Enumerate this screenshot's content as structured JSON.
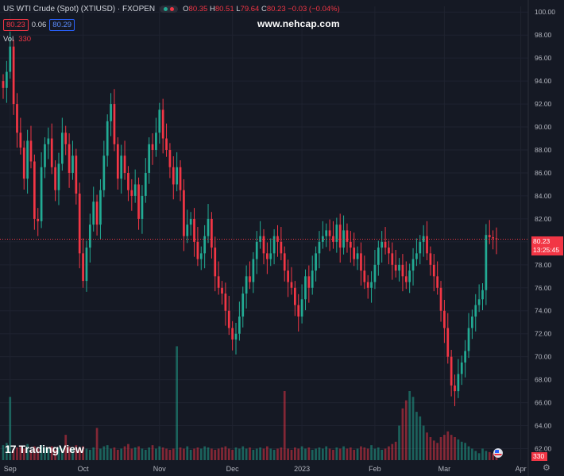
{
  "header": {
    "title": "US WTI Crude (Spot) (XTIUSD) · FXOPEN",
    "ohlc": [
      {
        "k": "O",
        "v": "80.35"
      },
      {
        "k": "H",
        "v": "80.51"
      },
      {
        "k": "L",
        "v": "79.64"
      },
      {
        "k": "C",
        "v": "80.23 −0.03 (−0.04%)"
      }
    ],
    "bid": "80.23",
    "spread": "0.06",
    "ask": "80.29",
    "vol_label": "Vol",
    "vol_value": "330"
  },
  "watermark": "www.nehcap.com",
  "brand": "TradingView",
  "brand_logo": "17",
  "last_price_label": "80.23",
  "countdown": "13:25:45",
  "last_volume_label": "330",
  "colors": {
    "up": "#22ab94",
    "down": "#f23645",
    "background": "#151924",
    "grid": "#1f2330",
    "axis_text": "#b2b5be"
  },
  "chart_data": {
    "type": "candlestick",
    "symbol": "XTIUSD",
    "yticks": [
      62,
      64,
      66,
      68,
      70,
      72,
      74,
      76,
      78,
      80,
      82,
      84,
      86,
      88,
      90,
      92,
      94,
      96,
      98,
      100
    ],
    "ylim": [
      61,
      100.5
    ],
    "xticks": [
      {
        "label": "Sep",
        "i": 2
      },
      {
        "label": "Oct",
        "i": 23
      },
      {
        "label": "Nov",
        "i": 45
      },
      {
        "label": "Dec",
        "i": 66
      },
      {
        "label": "2023",
        "i": 86
      },
      {
        "label": "Feb",
        "i": 107
      },
      {
        "label": "Mar",
        "i": 127
      },
      {
        "label": "Apr",
        "i": 149
      }
    ],
    "last_price": 80.23,
    "close": [
      93.4,
      94.8,
      97.0,
      92.0,
      89.5,
      88.2,
      85.5,
      88.8,
      87.0,
      82.0,
      81.8,
      86.5,
      88.5,
      89.0,
      86.5,
      84.5,
      86.8,
      89.5,
      88.5,
      86.0,
      87.5,
      84.2,
      79.0,
      76.6,
      79.5,
      81.5,
      83.5,
      81.5,
      84.5,
      87.5,
      90.5,
      92.0,
      88.5,
      85.5,
      87.5,
      86.0,
      84.5,
      84.0,
      85.0,
      82.0,
      84.0,
      86.0,
      88.5,
      88.0,
      89.5,
      91.5,
      89.0,
      88.0,
      86.5,
      85.0,
      86.5,
      84.5,
      80.5,
      81.5,
      82.0,
      80.0,
      78.5,
      79.0,
      80.5,
      82.0,
      79.5,
      77.0,
      76.0,
      75.5,
      74.0,
      72.5,
      71.5,
      72.0,
      73.5,
      75.5,
      77.0,
      76.5,
      78.5,
      80.0,
      80.5,
      79.0,
      78.5,
      79.0,
      80.5,
      80.0,
      79.0,
      77.5,
      76.5,
      76.0,
      74.5,
      73.5,
      75.0,
      77.0,
      76.0,
      77.5,
      79.0,
      80.0,
      80.5,
      81.0,
      80.5,
      80.0,
      81.5,
      79.5,
      81.0,
      80.0,
      79.5,
      78.5,
      79.0,
      77.5,
      76.5,
      76.0,
      76.5,
      78.0,
      79.5,
      80.0,
      79.5,
      79.0,
      78.0,
      77.5,
      78.0,
      77.0,
      76.5,
      77.5,
      78.5,
      79.0,
      80.0,
      80.5,
      79.0,
      78.0,
      77.0,
      76.0,
      74.0,
      72.5,
      70.0,
      67.5,
      67.0,
      68.5,
      69.5,
      70.5,
      72.5,
      73.5,
      74.5,
      75.0,
      75.8,
      80.6,
      80.4,
      80.3,
      80.23
    ],
    "volume_scale_max": 1,
    "volume": [
      0.13,
      0.15,
      0.55,
      0.1,
      0.11,
      0.12,
      0.1,
      0.14,
      0.09,
      0.12,
      0.1,
      0.13,
      0.11,
      0.1,
      0.12,
      0.09,
      0.11,
      0.1,
      0.22,
      0.12,
      0.1,
      0.13,
      0.11,
      0.12,
      0.1,
      0.09,
      0.11,
      0.28,
      0.1,
      0.12,
      0.13,
      0.1,
      0.11,
      0.09,
      0.1,
      0.12,
      0.14,
      0.1,
      0.11,
      0.12,
      0.1,
      0.09,
      0.11,
      0.13,
      0.1,
      0.12,
      0.11,
      0.1,
      0.09,
      0.1,
      0.99,
      0.11,
      0.1,
      0.12,
      0.09,
      0.1,
      0.11,
      0.1,
      0.12,
      0.11,
      0.1,
      0.09,
      0.1,
      0.11,
      0.12,
      0.1,
      0.09,
      0.11,
      0.1,
      0.12,
      0.1,
      0.11,
      0.09,
      0.1,
      0.11,
      0.1,
      0.12,
      0.1,
      0.09,
      0.1,
      0.11,
      0.6,
      0.1,
      0.09,
      0.11,
      0.1,
      0.12,
      0.1,
      0.11,
      0.09,
      0.1,
      0.11,
      0.1,
      0.12,
      0.1,
      0.09,
      0.11,
      0.1,
      0.12,
      0.1,
      0.11,
      0.09,
      0.1,
      0.12,
      0.11,
      0.1,
      0.13,
      0.1,
      0.11,
      0.09,
      0.1,
      0.12,
      0.14,
      0.16,
      0.3,
      0.45,
      0.52,
      0.6,
      0.55,
      0.42,
      0.38,
      0.3,
      0.24,
      0.2,
      0.17,
      0.15,
      0.2,
      0.22,
      0.25,
      0.22,
      0.2,
      0.18,
      0.16,
      0.15,
      0.12,
      0.1,
      0.08,
      0.06,
      0.1,
      0.08,
      0.07,
      0.06,
      0.05
    ]
  }
}
